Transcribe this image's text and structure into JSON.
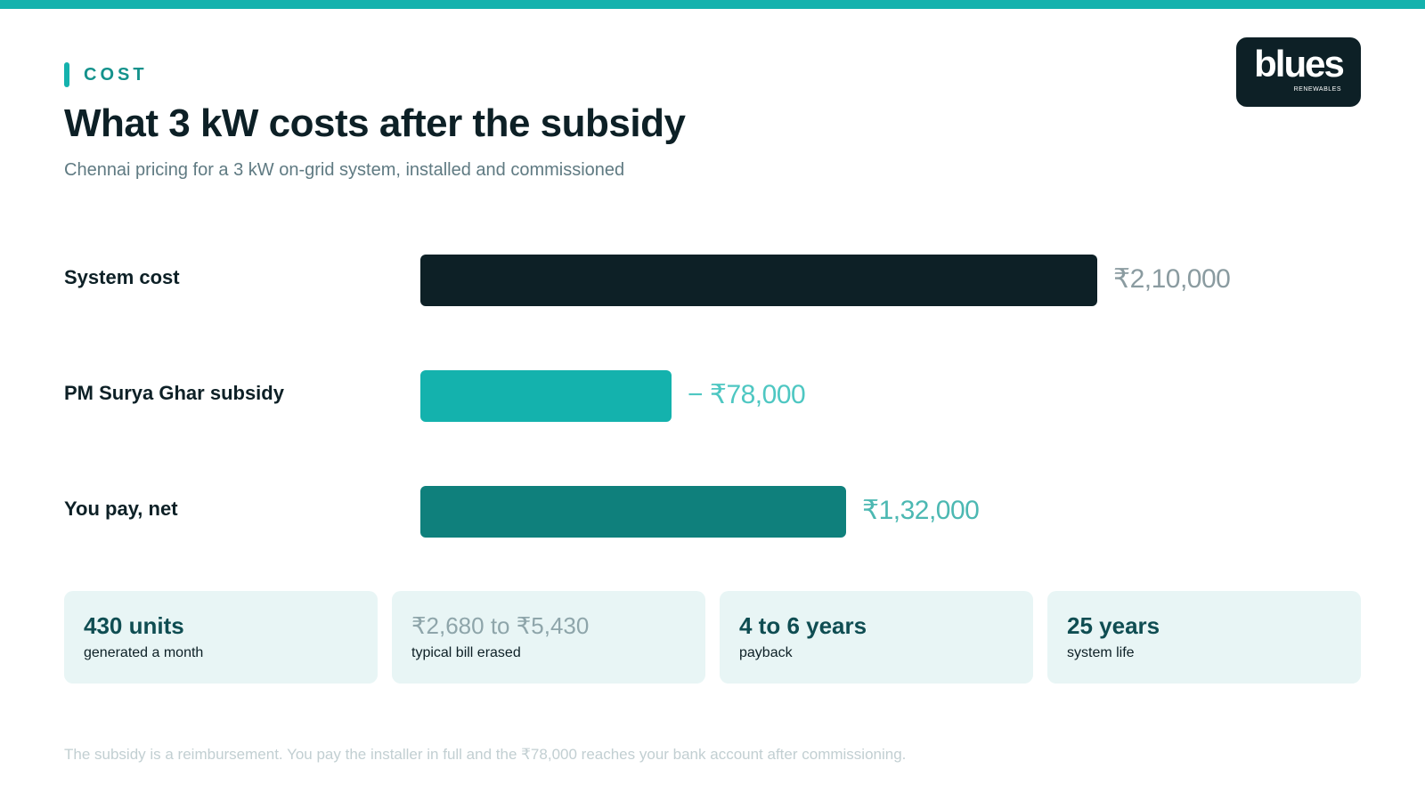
{
  "header": {
    "eyebrow": "COST",
    "title": "What 3 kW costs after the subsidy",
    "subtitle": "Chennai pricing for a 3 kW on-grid system, installed and commissioned"
  },
  "logo": {
    "word": "blues",
    "sub": "RENEWABLES"
  },
  "chart_data": {
    "type": "bar",
    "orientation": "horizontal",
    "categories": [
      "System cost",
      "PM Surya Ghar subsidy",
      "You pay, net"
    ],
    "values": [
      210000,
      78000,
      132000
    ],
    "value_labels": [
      "₹2,10,000",
      "− ₹78,000",
      "₹1,32,000"
    ],
    "colors": [
      "#0d2026",
      "#14b2ad",
      "#0f807c"
    ],
    "label_colors": [
      "#8a9ba0",
      "#4ec7c2",
      "#4cb8b2"
    ],
    "xlim": [
      0,
      210000
    ],
    "title": "",
    "xlabel": "",
    "ylabel": ""
  },
  "stats": [
    {
      "value": "430 units",
      "label": "generated a month"
    },
    {
      "value": "₹2,680 to ₹5,430",
      "label": "typical bill erased"
    },
    {
      "value": "4 to 6 years",
      "label": "payback"
    },
    {
      "value": "25 years",
      "label": "system life"
    }
  ],
  "footnote": "The subsidy is a reimbursement. You pay the installer in full and the ₹78,000 reaches your bank account after commissioning."
}
